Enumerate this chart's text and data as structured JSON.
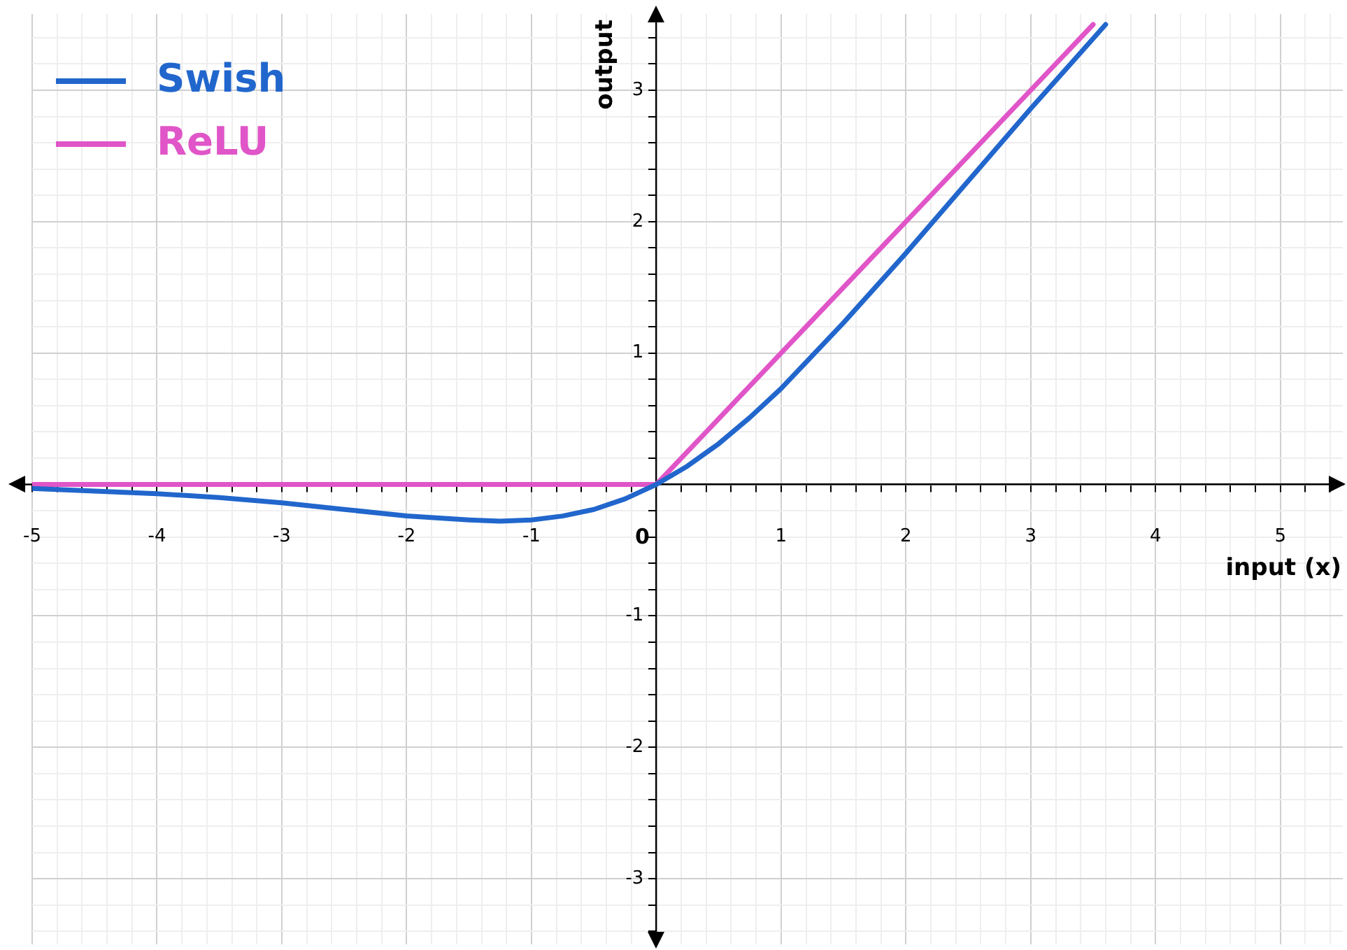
{
  "chart_data": {
    "type": "line",
    "xlabel": "input (x)",
    "ylabel": "output",
    "xlim": [
      -5,
      5.5
    ],
    "ylim": [
      -3.5,
      3.58
    ],
    "xticks": [
      -5,
      {
        "value": -4.8,
        "label": null
      },
      {
        "value": -4.6,
        "label": null
      },
      {
        "value": -4.4,
        "label": null
      },
      {
        "value": -4.2,
        "label": null
      },
      -4,
      {
        "value": -3.8,
        "label": null
      },
      {
        "value": -3.6,
        "label": null
      },
      {
        "value": -3.4,
        "label": null
      },
      {
        "value": -3.2,
        "label": null
      },
      -3,
      {
        "value": -2.8,
        "label": null
      },
      {
        "value": -2.6,
        "label": null
      },
      {
        "value": -2.4,
        "label": null
      },
      {
        "value": -2.2,
        "label": null
      },
      -2,
      {
        "value": -1.8,
        "label": null
      },
      {
        "value": -1.6,
        "label": null
      },
      {
        "value": -1.4,
        "label": null
      },
      {
        "value": -1.2,
        "label": null
      },
      -1,
      {
        "value": -0.8,
        "label": null
      },
      {
        "value": -0.6,
        "label": null
      },
      {
        "value": -0.4,
        "label": null
      },
      {
        "value": -0.2,
        "label": null
      },
      0,
      {
        "value": 0.2,
        "label": null
      },
      {
        "value": 0.4,
        "label": null
      },
      {
        "value": 0.6,
        "label": null
      },
      {
        "value": 0.8,
        "label": null
      },
      1,
      {
        "value": 1.2,
        "label": null
      },
      {
        "value": 1.4,
        "label": null
      },
      {
        "value": 1.6,
        "label": null
      },
      {
        "value": 1.8,
        "label": null
      },
      2,
      {
        "value": 2.2,
        "label": null
      },
      {
        "value": 2.4,
        "label": null
      },
      {
        "value": 2.6,
        "label": null
      },
      {
        "value": 2.8,
        "label": null
      },
      3,
      {
        "value": 3.2,
        "label": null
      },
      {
        "value": 3.4,
        "label": null
      },
      {
        "value": 3.6,
        "label": null
      },
      {
        "value": 3.8,
        "label": null
      },
      4,
      {
        "value": 4.2,
        "label": null
      },
      {
        "value": 4.4,
        "label": null
      },
      {
        "value": 4.6,
        "label": null
      },
      {
        "value": 4.8,
        "label": null
      },
      5,
      {
        "value": 5.2,
        "label": null
      },
      {
        "value": 5.4,
        "label": null
      }
    ],
    "yticks": [
      {
        "value": -3.4,
        "label": null
      },
      {
        "value": -3.2,
        "label": null
      },
      -3,
      {
        "value": -2.8,
        "label": null
      },
      {
        "value": -2.6,
        "label": null
      },
      {
        "value": -2.4,
        "label": null
      },
      {
        "value": -2.2,
        "label": null
      },
      -2,
      {
        "value": -1.8,
        "label": null
      },
      {
        "value": -1.6,
        "label": null
      },
      {
        "value": -1.4,
        "label": null
      },
      {
        "value": -1.2,
        "label": null
      },
      -1,
      {
        "value": -0.8,
        "label": null
      },
      {
        "value": -0.6,
        "label": null
      },
      {
        "value": -0.4,
        "label": null
      },
      {
        "value": -0.2,
        "label": null
      },
      {
        "value": 0,
        "label": null
      },
      {
        "value": 0.2,
        "label": null
      },
      {
        "value": 0.4,
        "label": null
      },
      {
        "value": 0.6,
        "label": null
      },
      {
        "value": 0.8,
        "label": null
      },
      1,
      {
        "value": 1.2,
        "label": null
      },
      {
        "value": 1.4,
        "label": null
      },
      {
        "value": 1.6,
        "label": null
      },
      {
        "value": 1.8,
        "label": null
      },
      2,
      {
        "value": 2.2,
        "label": null
      },
      {
        "value": 2.4,
        "label": null
      },
      {
        "value": 2.6,
        "label": null
      },
      {
        "value": 2.8,
        "label": null
      },
      3,
      {
        "value": 3.2,
        "label": null
      },
      {
        "value": 3.4,
        "label": null
      }
    ],
    "grid": true,
    "legend": "top left",
    "marker": "none",
    "line_style": "solid",
    "series": [
      {
        "name": "Swish",
        "color": "#2166cc",
        "x": [
          -5,
          -4.5,
          -4,
          -3.5,
          -3,
          -2.5,
          -2,
          -1.5,
          -1.25,
          -1,
          -0.75,
          -0.5,
          -0.25,
          0,
          0.25,
          0.5,
          0.75,
          1,
          1.5,
          2,
          2.5,
          3,
          3.6
        ],
        "values": [
          -0.03,
          -0.05,
          -0.07,
          -0.1,
          -0.14,
          -0.19,
          -0.24,
          -0.27,
          -0.28,
          -0.27,
          -0.24,
          -0.19,
          -0.11,
          0,
          0.14,
          0.31,
          0.51,
          0.73,
          1.23,
          1.76,
          2.31,
          2.86,
          3.5
        ]
      },
      {
        "name": "ReLU",
        "color": "#e055c8",
        "x": [
          -5,
          0,
          3.5
        ],
        "values": [
          0,
          0,
          3.5
        ]
      }
    ]
  }
}
